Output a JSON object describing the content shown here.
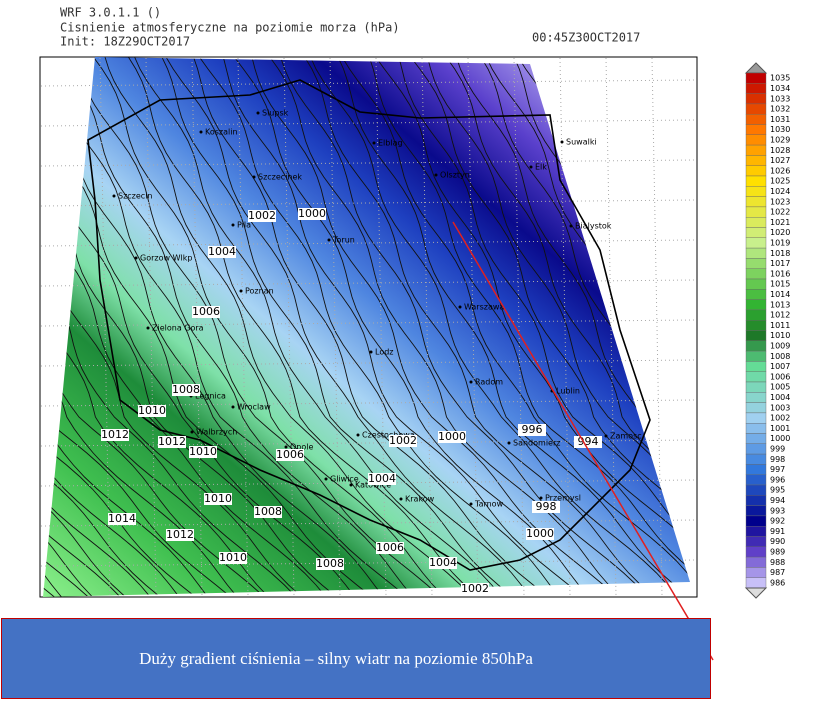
{
  "header": {
    "model": "WRF 3.0.1.1 ()",
    "field": "Cisnienie atmosferyczne na poziomie morza (hPa)",
    "init": "Init: 18Z29OCT2017",
    "valid": "00:45Z30OCT2017"
  },
  "colorbar": {
    "labels": [
      1035,
      1034,
      1033,
      1032,
      1031,
      1030,
      1029,
      1028,
      1027,
      1026,
      1025,
      1024,
      1023,
      1022,
      1021,
      1020,
      1019,
      1018,
      1017,
      1016,
      1015,
      1014,
      1013,
      1012,
      1011,
      1010,
      1009,
      1008,
      1007,
      1006,
      1005,
      1004,
      1003,
      1002,
      1001,
      1000,
      999,
      998,
      997,
      996,
      995,
      994,
      993,
      992,
      991,
      990,
      989,
      988,
      987,
      986
    ]
  },
  "cities": [
    "Slupsk",
    "Koszalin",
    "Elblag",
    "Olsztyn",
    "Suwalki",
    "Elk",
    "Szczecinek",
    "Szczecin",
    "Pila",
    "Bialystok",
    "Torun",
    "Gorzow Wlkp",
    "Poznan",
    "Warszawa",
    "Zielona Gora",
    "Lodz",
    "Radom",
    "Legnica",
    "Wroclaw",
    "Lublin",
    "Zamosc",
    "Walbrzych",
    "Opole",
    "Czestochowa",
    "Sandomierz",
    "Gliwice",
    "Katowice",
    "Krakow",
    "Tarnow",
    "Przemysl"
  ],
  "contour_labels": [
    1002,
    1000,
    1004,
    1006,
    1008,
    1010,
    1012,
    1012,
    1010,
    1010,
    1008,
    1006,
    1002,
    1004,
    1000,
    996,
    994,
    998,
    1000,
    1014,
    1012,
    1010,
    1008,
    1006,
    1004,
    1002
  ],
  "annotation": "Duży gradient ciśnienia – silny wiatr na poziomie 850hPa"
}
